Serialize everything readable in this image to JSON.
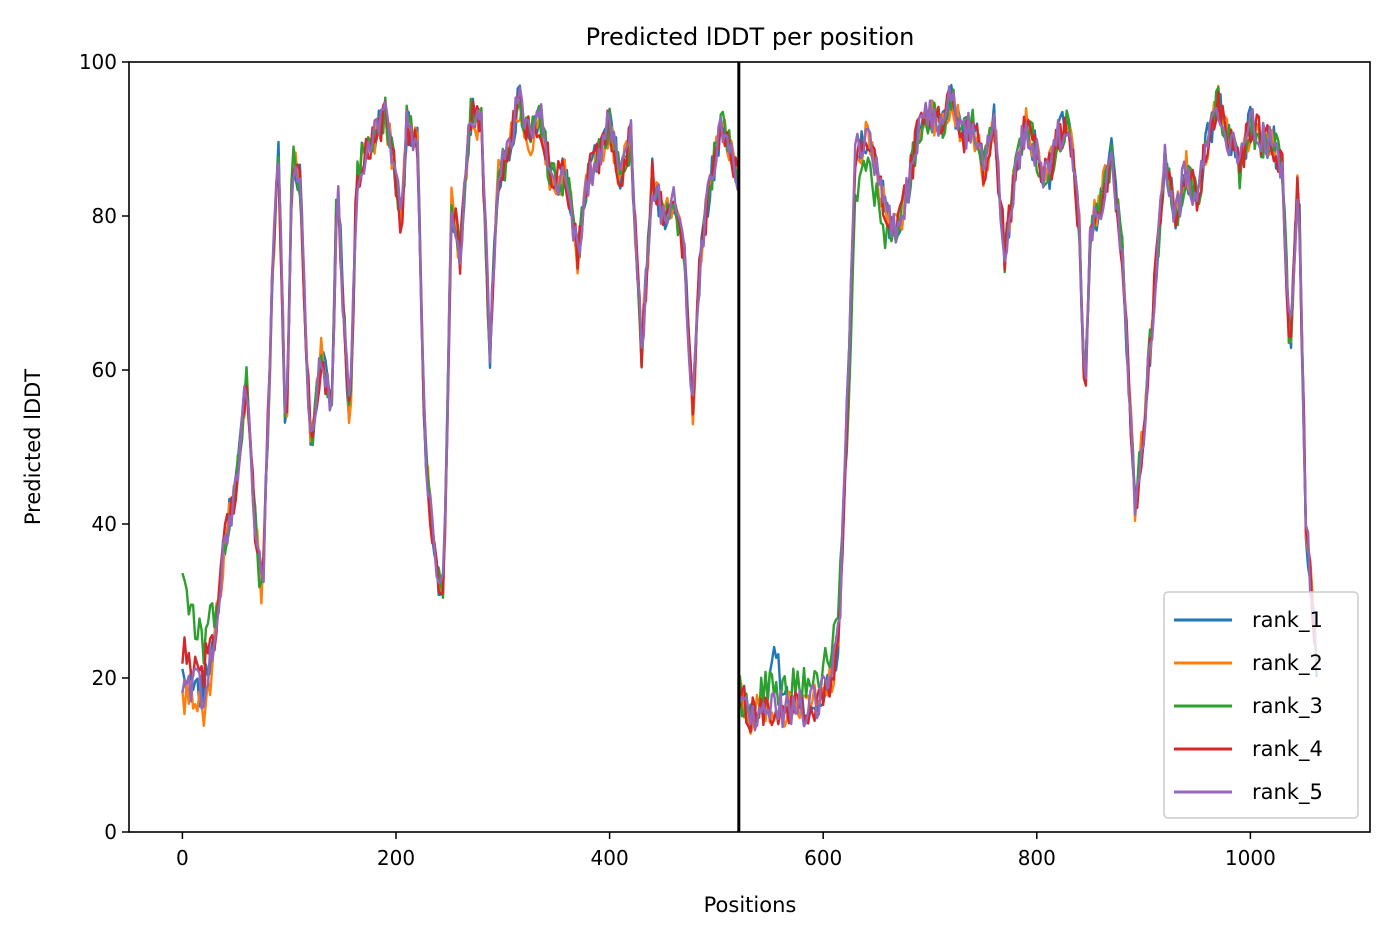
{
  "chart_data": {
    "type": "line",
    "title": "Predicted lDDT per position",
    "xlabel": "Positions",
    "ylabel": "Predicted lDDT",
    "xlim": [
      -50,
      1112
    ],
    "ylim": [
      0,
      100
    ],
    "xticks": [
      0,
      200,
      400,
      600,
      800,
      1000
    ],
    "yticks": [
      0,
      20,
      40,
      60,
      80,
      100
    ],
    "grid": false,
    "legend_position": "lower right",
    "chain_break": 521,
    "series": [
      {
        "name": "rank_1",
        "color": "#1f77b4"
      },
      {
        "name": "rank_2",
        "color": "#ff7f0e"
      },
      {
        "name": "rank_3",
        "color": "#2ca02c"
      },
      {
        "name": "rank_4",
        "color": "#d62728"
      },
      {
        "name": "rank_5",
        "color": "#9467bd"
      }
    ],
    "base_profile": [
      [
        0,
        20
      ],
      [
        10,
        19
      ],
      [
        20,
        18
      ],
      [
        30,
        25
      ],
      [
        40,
        38
      ],
      [
        50,
        45
      ],
      [
        60,
        58
      ],
      [
        68,
        40
      ],
      [
        75,
        30
      ],
      [
        85,
        75
      ],
      [
        90,
        88
      ],
      [
        97,
        50
      ],
      [
        103,
        88
      ],
      [
        110,
        85
      ],
      [
        120,
        50
      ],
      [
        130,
        62
      ],
      [
        140,
        55
      ],
      [
        145,
        86
      ],
      [
        150,
        70
      ],
      [
        157,
        52
      ],
      [
        163,
        85
      ],
      [
        170,
        88
      ],
      [
        180,
        90
      ],
      [
        190,
        93
      ],
      [
        200,
        85
      ],
      [
        205,
        78
      ],
      [
        210,
        92
      ],
      [
        220,
        90
      ],
      [
        227,
        50
      ],
      [
        233,
        40
      ],
      [
        240,
        33
      ],
      [
        245,
        32
      ],
      [
        252,
        82
      ],
      [
        260,
        75
      ],
      [
        270,
        93
      ],
      [
        280,
        92
      ],
      [
        288,
        62
      ],
      [
        295,
        85
      ],
      [
        305,
        88
      ],
      [
        315,
        95
      ],
      [
        325,
        90
      ],
      [
        335,
        93
      ],
      [
        345,
        85
      ],
      [
        360,
        85
      ],
      [
        370,
        75
      ],
      [
        380,
        85
      ],
      [
        390,
        88
      ],
      [
        400,
        92
      ],
      [
        410,
        85
      ],
      [
        420,
        90
      ],
      [
        430,
        62
      ],
      [
        440,
        85
      ],
      [
        450,
        80
      ],
      [
        460,
        82
      ],
      [
        470,
        75
      ],
      [
        478,
        55
      ],
      [
        485,
        75
      ],
      [
        495,
        85
      ],
      [
        505,
        92
      ],
      [
        515,
        88
      ],
      [
        521,
        85
      ]
    ],
    "base_profile_chain_b": [
      [
        522,
        18
      ],
      [
        530,
        15
      ],
      [
        545,
        16
      ],
      [
        560,
        16
      ],
      [
        580,
        16
      ],
      [
        595,
        17
      ],
      [
        608,
        20
      ],
      [
        615,
        26
      ],
      [
        625,
        65
      ],
      [
        630,
        88
      ],
      [
        640,
        90
      ],
      [
        650,
        86
      ],
      [
        660,
        80
      ],
      [
        670,
        78
      ],
      [
        680,
        84
      ],
      [
        690,
        92
      ],
      [
        700,
        93
      ],
      [
        710,
        92
      ],
      [
        720,
        95
      ],
      [
        730,
        90
      ],
      [
        740,
        92
      ],
      [
        750,
        86
      ],
      [
        760,
        92
      ],
      [
        770,
        75
      ],
      [
        780,
        86
      ],
      [
        790,
        92
      ],
      [
        800,
        88
      ],
      [
        810,
        85
      ],
      [
        820,
        90
      ],
      [
        830,
        93
      ],
      [
        840,
        78
      ],
      [
        845,
        55
      ],
      [
        850,
        78
      ],
      [
        860,
        82
      ],
      [
        870,
        88
      ],
      [
        880,
        75
      ],
      [
        885,
        62
      ],
      [
        892,
        42
      ],
      [
        900,
        52
      ],
      [
        910,
        70
      ],
      [
        920,
        88
      ],
      [
        930,
        80
      ],
      [
        940,
        86
      ],
      [
        950,
        82
      ],
      [
        960,
        90
      ],
      [
        970,
        95
      ],
      [
        980,
        90
      ],
      [
        990,
        86
      ],
      [
        1000,
        92
      ],
      [
        1010,
        90
      ],
      [
        1020,
        90
      ],
      [
        1030,
        86
      ],
      [
        1037,
        62
      ],
      [
        1045,
        86
      ],
      [
        1052,
        40
      ],
      [
        1058,
        30
      ],
      [
        1062,
        22
      ]
    ]
  }
}
